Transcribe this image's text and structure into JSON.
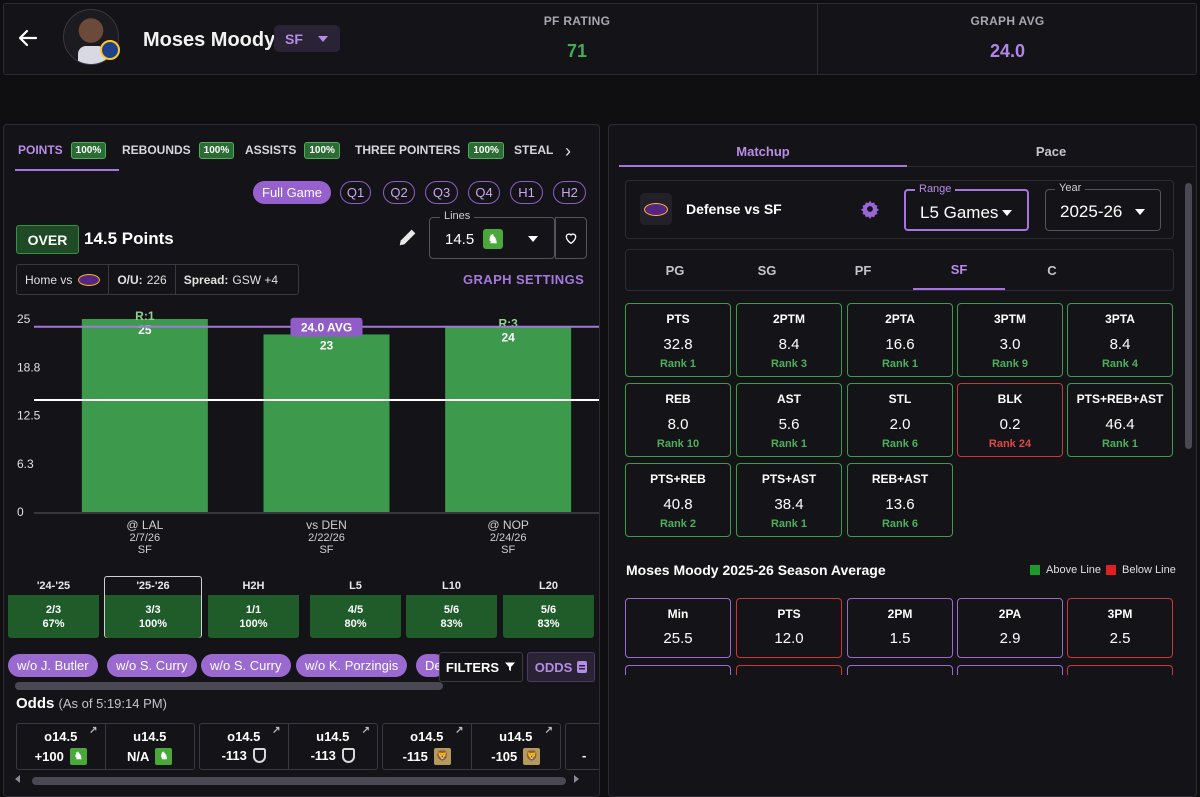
{
  "header": {
    "player_name": "Moses Moody",
    "position": "SF",
    "pf_rating_label": "PF RATING",
    "pf_rating_value": "71",
    "graph_avg_label": "GRAPH AVG",
    "graph_avg_value": "24.0"
  },
  "stat_tabs": [
    {
      "label": "POINTS",
      "pct": "100%"
    },
    {
      "label": "REBOUNDS",
      "pct": "100%"
    },
    {
      "label": "ASSISTS",
      "pct": "100%"
    },
    {
      "label": "THREE POINTERS",
      "pct": "100%"
    },
    {
      "label": "STEAL",
      "pct": ""
    }
  ],
  "periods": [
    "Full Game",
    "Q1",
    "Q2",
    "Q3",
    "Q4",
    "H1",
    "H2"
  ],
  "line": {
    "side": "OVER",
    "text": "14.5 Points",
    "lines_label": "Lines",
    "lines_value": "14.5",
    "book_icon": "draftkings-icon"
  },
  "game_info": {
    "home_vs": "Home vs",
    "ou_label": "O/U:",
    "ou_value": "226",
    "spread_label": "Spread:",
    "spread_value": "GSW +4"
  },
  "graph_settings_label": "GRAPH SETTINGS",
  "chart_data": {
    "type": "bar",
    "categories": [
      "@ LAL",
      "vs DEN",
      "@ NOP"
    ],
    "dates": [
      "2/7/26",
      "2/22/26",
      "2/24/26"
    ],
    "positions": [
      "SF",
      "SF",
      "SF"
    ],
    "values": [
      25,
      23,
      24
    ],
    "rest_labels": [
      "R:1",
      "",
      "R:3"
    ],
    "yticks": [
      "0",
      "6.3",
      "12.5",
      "18.8",
      "25"
    ],
    "ylim": [
      0,
      25
    ],
    "avg_value": 24.0,
    "avg_label": "24.0 AVG",
    "line_value": 14.5,
    "bar_color": "#3d9a4c",
    "avg_color": "#a575e0",
    "line_color": "#ffffff"
  },
  "hit_rates": [
    {
      "label": "'24-'25",
      "frac": "2/3",
      "pct": "67%"
    },
    {
      "label": "'25-'26",
      "frac": "3/3",
      "pct": "100%"
    },
    {
      "label": "H2H",
      "frac": "1/1",
      "pct": "100%"
    },
    {
      "label": "L5",
      "frac": "4/5",
      "pct": "80%"
    },
    {
      "label": "L10",
      "frac": "5/6",
      "pct": "83%"
    },
    {
      "label": "L20",
      "frac": "5/6",
      "pct": "83%"
    }
  ],
  "without_chips": [
    "w/o J. Butler",
    "w/o S. Curry",
    "w/o S. Curry",
    "w/o K. Porzingis",
    "De"
  ],
  "filters_label": "FILTERS",
  "odds_button_label": "ODDS",
  "odds": {
    "title": "Odds",
    "as_of": "(As of 5:19:14 PM)",
    "cards": [
      {
        "over_line": "o14.5",
        "over_price": "+100",
        "under_line": "u14.5",
        "under_price": "N/A",
        "book": "dk"
      },
      {
        "over_line": "o14.5",
        "over_price": "-113",
        "under_line": "u14.5",
        "under_price": "-113",
        "book": "fd"
      },
      {
        "over_line": "o14.5",
        "over_price": "-115",
        "under_line": "u14.5",
        "under_price": "-105",
        "book": "mgm"
      }
    ],
    "partial": "-"
  },
  "right_tabs": [
    "Matchup",
    "Pace"
  ],
  "defense": {
    "title": "Defense vs SF",
    "range_label": "Range",
    "range_value": "L5 Games",
    "year_label": "Year",
    "year_value": "2025-26"
  },
  "position_tabs": [
    "PG",
    "SG",
    "PF",
    "SF",
    "C"
  ],
  "matchup_stats": [
    {
      "label": "PTS",
      "value": "32.8",
      "rank": "Rank 1",
      "bad": false
    },
    {
      "label": "2PTM",
      "value": "8.4",
      "rank": "Rank 3",
      "bad": false
    },
    {
      "label": "2PTA",
      "value": "16.6",
      "rank": "Rank 1",
      "bad": false
    },
    {
      "label": "3PTM",
      "value": "3.0",
      "rank": "Rank 9",
      "bad": false
    },
    {
      "label": "3PTA",
      "value": "8.4",
      "rank": "Rank 4",
      "bad": false
    },
    {
      "label": "REB",
      "value": "8.0",
      "rank": "Rank 10",
      "bad": false
    },
    {
      "label": "AST",
      "value": "5.6",
      "rank": "Rank 1",
      "bad": false
    },
    {
      "label": "STL",
      "value": "2.0",
      "rank": "Rank 6",
      "bad": false
    },
    {
      "label": "BLK",
      "value": "0.2",
      "rank": "Rank 24",
      "bad": true
    },
    {
      "label": "PTS+REB+AST",
      "value": "46.4",
      "rank": "Rank 1",
      "bad": false
    },
    {
      "label": "PTS+REB",
      "value": "40.8",
      "rank": "Rank 2",
      "bad": false
    },
    {
      "label": "PTS+AST",
      "value": "38.4",
      "rank": "Rank 1",
      "bad": false
    },
    {
      "label": "REB+AST",
      "value": "13.6",
      "rank": "Rank 6",
      "bad": false
    }
  ],
  "season": {
    "title": "Moses Moody 2025-26 Season Average",
    "above_label": "Above Line",
    "below_label": "Below Line",
    "above_color": "#1a9c2a",
    "below_color": "#e02020",
    "stats": [
      {
        "label": "Min",
        "value": "25.5",
        "state": "above"
      },
      {
        "label": "PTS",
        "value": "12.0",
        "state": "below"
      },
      {
        "label": "2PM",
        "value": "1.5",
        "state": "above"
      },
      {
        "label": "2PA",
        "value": "2.9",
        "state": "above"
      },
      {
        "label": "3PM",
        "value": "2.5",
        "state": "below"
      }
    ]
  }
}
